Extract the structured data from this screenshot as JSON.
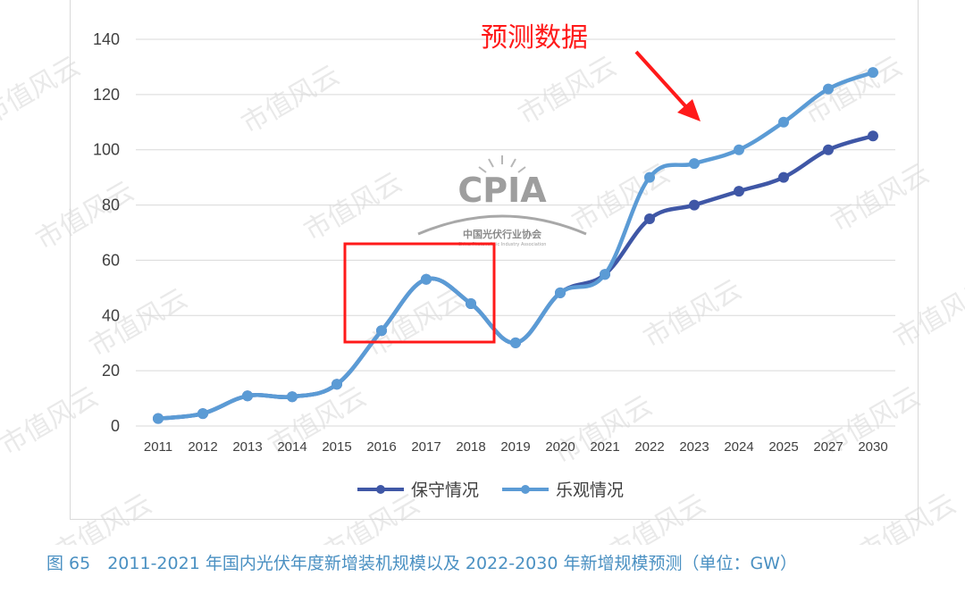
{
  "chart_data": {
    "type": "line",
    "categories": [
      "2011",
      "2012",
      "2013",
      "2014",
      "2015",
      "2016",
      "2017",
      "2018",
      "2019",
      "2020",
      "2021",
      "2022",
      "2023",
      "2024",
      "2025",
      "2027",
      "2030"
    ],
    "series": [
      {
        "name": "保守情况",
        "color": "#3f57a6",
        "values": [
          2.7,
          4.5,
          10.9,
          10.6,
          15.1,
          34.5,
          53.1,
          44.3,
          30.1,
          48.2,
          54.9,
          75,
          80,
          85,
          90,
          100,
          105
        ]
      },
      {
        "name": "乐观情况",
        "color": "#5b9bd5",
        "values": [
          2.7,
          4.5,
          10.9,
          10.6,
          15.1,
          34.5,
          53.1,
          44.3,
          30.1,
          48.2,
          54.9,
          90,
          95,
          100,
          110,
          122,
          128
        ]
      }
    ],
    "ylim": [
      0,
      140
    ],
    "yticks": [
      "0",
      "20",
      "40",
      "60",
      "80",
      "100",
      "120",
      "140"
    ],
    "grid": true,
    "legend_position": "bottom-center",
    "annotation": "预测数据",
    "caption": "图 65　2011-2021 年国内光伏年度新增装机规模以及 2022-2030 年新增规模预测（单位：GW）"
  },
  "logo": {
    "name": "CPIA",
    "subtitle": "中国光伏行业协会",
    "subtitle_en": "China Photovoltaic Industry Association"
  },
  "watermark": "市值风云",
  "colors": {
    "highlight_box": "#ff1a1a",
    "arrow": "#ff1a1a",
    "grid": "#d9d9d9"
  }
}
